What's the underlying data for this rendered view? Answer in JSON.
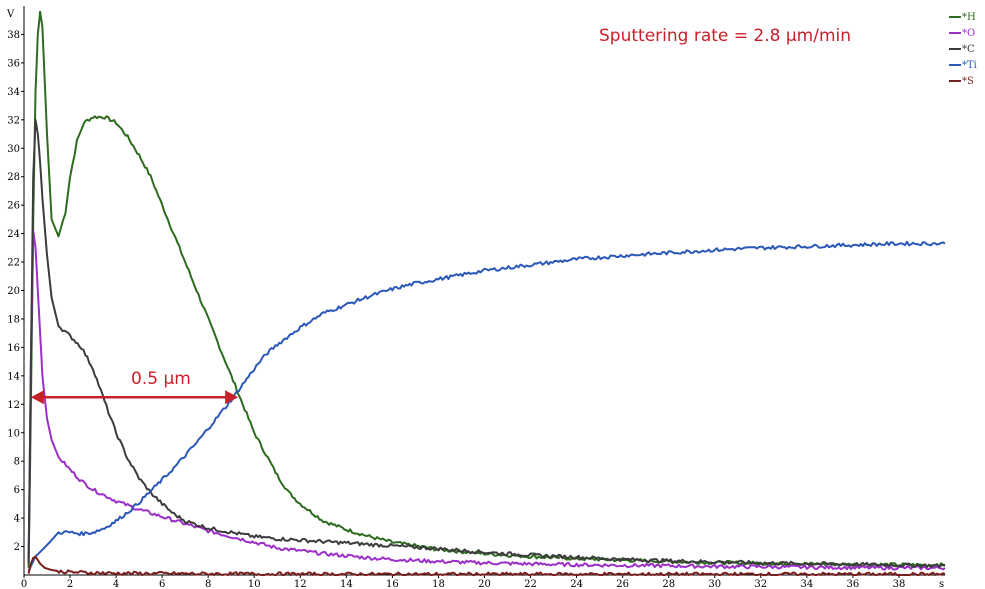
{
  "chart_data": {
    "type": "line",
    "title": "",
    "ylabel": "V",
    "xlabel": "s",
    "xlim": [
      0,
      40
    ],
    "ylim": [
      0,
      40
    ],
    "x_ticks": [
      "0",
      "2",
      "4",
      "6",
      "8",
      "10",
      "12",
      "14",
      "16",
      "18",
      "20",
      "22",
      "24",
      "26",
      "28",
      "30",
      "32",
      "34",
      "36",
      "38"
    ],
    "y_ticks": [
      "2",
      "4",
      "6",
      "8",
      "10",
      "12",
      "14",
      "16",
      "18",
      "20",
      "22",
      "24",
      "26",
      "28",
      "30",
      "32",
      "34",
      "36",
      "38"
    ],
    "legend": "top-right",
    "series": [
      {
        "name": "*H",
        "color": "#2d6b1f",
        "x": [
          0.2,
          0.3,
          0.4,
          0.5,
          0.6,
          0.7,
          0.8,
          1.0,
          1.2,
          1.5,
          1.8,
          2.0,
          2.3,
          2.6,
          3.0,
          3.5,
          4.0,
          4.5,
          5.0,
          5.5,
          6.0,
          6.5,
          7.0,
          7.5,
          8.0,
          8.5,
          9.0,
          9.5,
          10.0,
          10.5,
          11.0,
          11.5,
          12.0,
          13.0,
          14.0,
          15.0,
          16.0,
          18.0,
          20.0,
          22.0,
          24.0,
          26.0,
          28.0,
          30.0,
          32.0,
          34.0,
          36.0,
          38.0,
          40.0
        ],
        "y": [
          0.5,
          12,
          25,
          34,
          38,
          39.6,
          38.5,
          31,
          25,
          23.8,
          25.5,
          28,
          30.5,
          31.8,
          32.2,
          32.2,
          31.8,
          30.8,
          29.5,
          28,
          26,
          24,
          22,
          20,
          18,
          16,
          14,
          12,
          10,
          8.5,
          7,
          5.8,
          5,
          3.8,
          3.2,
          2.7,
          2.3,
          1.8,
          1.5,
          1.3,
          1.15,
          1.05,
          0.95,
          0.88,
          0.82,
          0.78,
          0.75,
          0.72,
          0.7
        ]
      },
      {
        "name": "*O",
        "color": "#9b2fc8",
        "x": [
          0.2,
          0.3,
          0.4,
          0.5,
          0.6,
          0.7,
          0.8,
          1.0,
          1.2,
          1.5,
          2.0,
          2.5,
          3.0,
          4.0,
          5.0,
          6.0,
          7.0,
          8.0,
          9.0,
          10.0,
          11.0,
          12.0,
          13.0,
          14.0,
          15.0,
          16.0,
          18.0,
          20.0,
          22.0,
          24.0,
          26.0,
          28.0,
          30.0,
          32.0,
          34.0,
          36.0,
          38.0,
          40.0
        ],
        "y": [
          1,
          15,
          24.2,
          23,
          20,
          17,
          14,
          11,
          9.5,
          8.3,
          7.4,
          6.6,
          6,
          5.2,
          4.6,
          4.1,
          3.6,
          3.1,
          2.7,
          2.3,
          1.9,
          1.7,
          1.5,
          1.35,
          1.2,
          1.1,
          0.95,
          0.85,
          0.78,
          0.72,
          0.68,
          0.65,
          0.6,
          0.58,
          0.55,
          0.52,
          0.5,
          0.5
        ]
      },
      {
        "name": "*C",
        "color": "#3c3c3c",
        "x": [
          0.2,
          0.3,
          0.4,
          0.5,
          0.6,
          0.7,
          0.8,
          1.0,
          1.2,
          1.5,
          2.0,
          2.5,
          3.0,
          3.5,
          4.0,
          4.5,
          5.0,
          5.5,
          6.0,
          6.5,
          7.0,
          8.0,
          9.0,
          10.0,
          11.0,
          12.0,
          13.0,
          14.0,
          15.0,
          16.0,
          18.0,
          20.0,
          22.0,
          24.0,
          26.0,
          28.0,
          30.0,
          32.0,
          34.0,
          36.0,
          38.0,
          40.0
        ],
        "y": [
          0.8,
          15,
          28,
          32,
          31,
          29,
          26.5,
          22.5,
          19.5,
          17.5,
          16.8,
          16,
          14.5,
          12.2,
          10,
          8.2,
          6.8,
          5.8,
          5,
          4.3,
          3.8,
          3.3,
          3,
          2.7,
          2.55,
          2.45,
          2.35,
          2.25,
          2.15,
          2.05,
          1.85,
          1.6,
          1.4,
          1.25,
          1.1,
          1,
          0.92,
          0.85,
          0.8,
          0.75,
          0.7,
          0.65
        ]
      },
      {
        "name": "*Ti",
        "color": "#2b58b8",
        "x": [
          0.2,
          0.5,
          1.0,
          1.5,
          2.0,
          2.5,
          3.0,
          3.5,
          4.0,
          4.5,
          5.0,
          5.5,
          6.0,
          6.5,
          7.0,
          7.5,
          8.0,
          8.5,
          9.0,
          9.5,
          10.0,
          10.5,
          11.0,
          11.5,
          12.0,
          13.0,
          14.0,
          15.0,
          16.0,
          17.0,
          18.0,
          20.0,
          22.0,
          24.0,
          26.0,
          28.0,
          30.0,
          32.0,
          34.0,
          36.0,
          38.0,
          40.0
        ],
        "y": [
          0.3,
          1.3,
          2.1,
          3.0,
          3.0,
          2.9,
          3.0,
          3.3,
          3.8,
          4.4,
          5.1,
          5.9,
          6.7,
          7.5,
          8.4,
          9.3,
          10.3,
          11.3,
          12.3,
          13.4,
          14.5,
          15.5,
          16.2,
          16.8,
          17.4,
          18.4,
          19.0,
          19.6,
          20.1,
          20.5,
          20.8,
          21.4,
          21.8,
          22.2,
          22.45,
          22.65,
          22.85,
          23.0,
          23.1,
          23.2,
          23.3,
          23.3
        ]
      },
      {
        "name": "*S",
        "color": "#7a1f1f",
        "x": [
          0.2,
          0.3,
          0.4,
          0.5,
          0.7,
          0.9,
          1.2,
          1.6,
          2.0,
          3.0,
          4.0,
          6.0,
          8.0,
          10.0,
          12.0,
          16.0,
          20.0,
          24.0,
          28.0,
          32.0,
          36.0,
          40.0
        ],
        "y": [
          0.1,
          0.8,
          1.2,
          1.3,
          0.8,
          0.5,
          0.35,
          0.25,
          0.2,
          0.15,
          0.12,
          0.1,
          0.08,
          0.07,
          0.06,
          0.05,
          0.05,
          0.05,
          0.05,
          0.05,
          0.05,
          0.05
        ]
      }
    ],
    "annotations": {
      "rate_text": "Sputtering rate = 2.8 µm/min",
      "arrow_label": "0.5 µm",
      "arrow_from": 0.3,
      "arrow_to": 9.3,
      "arrow_y": 12.5,
      "arrow_color": "#c8202a"
    }
  }
}
